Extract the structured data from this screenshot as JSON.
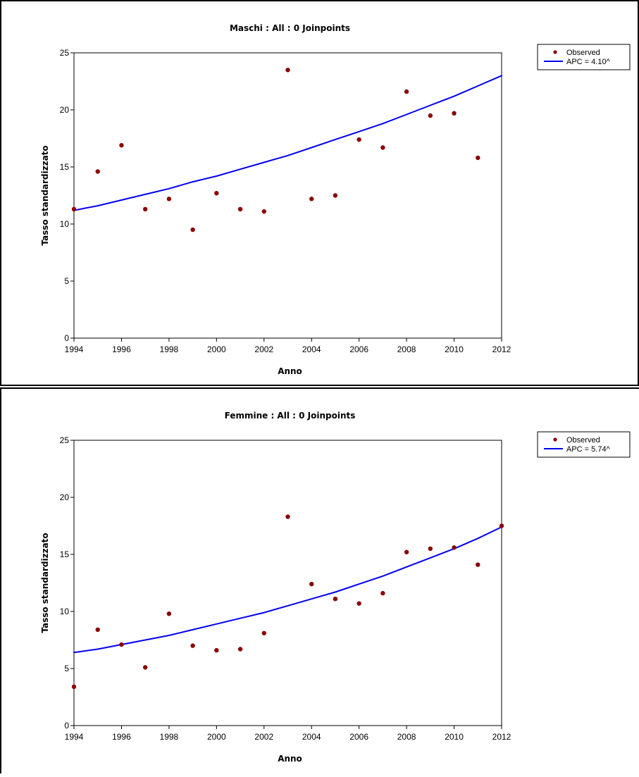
{
  "chart_data": [
    {
      "type": "scatter",
      "title": "Maschi : All : 0 Joinpoints",
      "xlabel": "Anno",
      "ylabel": "Tasso standardizzato",
      "xlim": [
        1994,
        2012
      ],
      "ylim": [
        0,
        25
      ],
      "xticks": [
        1994,
        1996,
        1998,
        2000,
        2002,
        2004,
        2006,
        2008,
        2010,
        2012
      ],
      "yticks": [
        0,
        5,
        10,
        15,
        20,
        25
      ],
      "grid": false,
      "legend_position": "top-right",
      "series": [
        {
          "name": "Observed",
          "kind": "scatter",
          "color": "#8b0000",
          "x": [
            1994,
            1995,
            1996,
            1997,
            1998,
            1999,
            2000,
            2001,
            2002,
            2003,
            2004,
            2005,
            2006,
            2007,
            2008,
            2009,
            2010,
            2011
          ],
          "y": [
            11.3,
            14.6,
            16.9,
            11.3,
            12.2,
            9.5,
            12.7,
            11.3,
            11.1,
            23.5,
            12.2,
            12.5,
            17.4,
            16.7,
            21.6,
            19.5,
            19.7,
            15.8
          ]
        },
        {
          "name": "APC = 4.10^",
          "kind": "line",
          "color": "#0000ee",
          "x": [
            1994,
            1995,
            1996,
            1997,
            1998,
            1999,
            2000,
            2001,
            2002,
            2003,
            2004,
            2005,
            2006,
            2007,
            2008,
            2009,
            2010,
            2011,
            2012
          ],
          "y": [
            11.2,
            11.6,
            12.1,
            12.6,
            13.1,
            13.7,
            14.2,
            14.8,
            15.4,
            16.0,
            16.7,
            17.4,
            18.1,
            18.8,
            19.6,
            20.4,
            21.2,
            22.1,
            23.0
          ]
        }
      ]
    },
    {
      "type": "scatter",
      "title": "Femmine : All : 0 Joinpoints",
      "xlabel": "Anno",
      "ylabel": "Tasso standardizzato",
      "xlim": [
        1994,
        2012
      ],
      "ylim": [
        0,
        25
      ],
      "xticks": [
        1994,
        1996,
        1998,
        2000,
        2002,
        2004,
        2006,
        2008,
        2010,
        2012
      ],
      "yticks": [
        0,
        5,
        10,
        15,
        20,
        25
      ],
      "grid": false,
      "legend_position": "top-right",
      "series": [
        {
          "name": "Observed",
          "kind": "scatter",
          "color": "#8b0000",
          "x": [
            1994,
            1995,
            1996,
            1997,
            1998,
            1999,
            2000,
            2001,
            2002,
            2003,
            2004,
            2005,
            2006,
            2007,
            2008,
            2009,
            2010,
            2011,
            2012
          ],
          "y": [
            3.4,
            8.4,
            7.1,
            5.1,
            9.8,
            7.0,
            6.6,
            6.7,
            8.1,
            18.3,
            12.4,
            11.1,
            10.7,
            11.6,
            15.2,
            15.5,
            15.6,
            14.1,
            17.5
          ]
        },
        {
          "name": "APC = 5.74^",
          "kind": "line",
          "color": "#0000ee",
          "x": [
            1994,
            1995,
            1996,
            1997,
            1998,
            1999,
            2000,
            2001,
            2002,
            2003,
            2004,
            2005,
            2006,
            2007,
            2008,
            2009,
            2010,
            2011,
            2012
          ],
          "y": [
            6.4,
            6.7,
            7.1,
            7.5,
            7.9,
            8.4,
            8.9,
            9.4,
            9.9,
            10.5,
            11.1,
            11.7,
            12.4,
            13.1,
            13.9,
            14.7,
            15.5,
            16.4,
            17.4
          ]
        }
      ]
    }
  ]
}
